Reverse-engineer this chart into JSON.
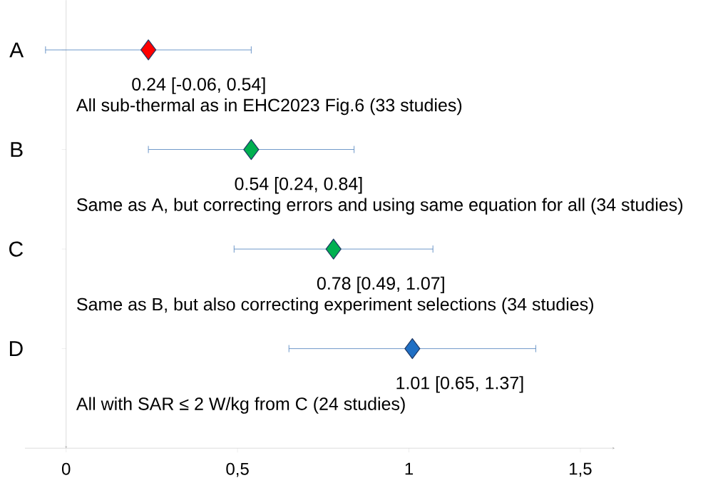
{
  "chart_data": {
    "type": "scatter",
    "orientation": "horizontal",
    "marker": "diamond",
    "categories": [
      "A",
      "B",
      "C",
      "D"
    ],
    "values": [
      0.24,
      0.54,
      0.78,
      1.01
    ],
    "errors": [
      [
        -0.06,
        0.54
      ],
      [
        0.24,
        0.84
      ],
      [
        0.49,
        1.07
      ],
      [
        0.65,
        1.37
      ]
    ],
    "colors": [
      "#ff0000",
      "#00b050",
      "#00b050",
      "#1f6fc4"
    ],
    "value_labels": [
      "0.24 [-0.06, 0.54]",
      "0.54 [0.24, 0.84]",
      "0.78 [0.49, 1.07]",
      "1.01 [0.65, 1.37]"
    ],
    "annotations": [
      "All sub-thermal as in EHC2023 Fig.6 (33 studies)",
      "Same as A, but correcting errors and using same equation for all (34 studies)",
      "Same as B, but also correcting experiment selections (34 studies)",
      "All with SAR ≤ 2 W/kg from C (24 studies)"
    ],
    "xlim": [
      -0.12,
      1.6
    ],
    "xticks": [
      0,
      {
        "value": 0.5,
        "label": "0,5"
      },
      1,
      {
        "value": 1.5,
        "label": "1,5"
      }
    ]
  }
}
